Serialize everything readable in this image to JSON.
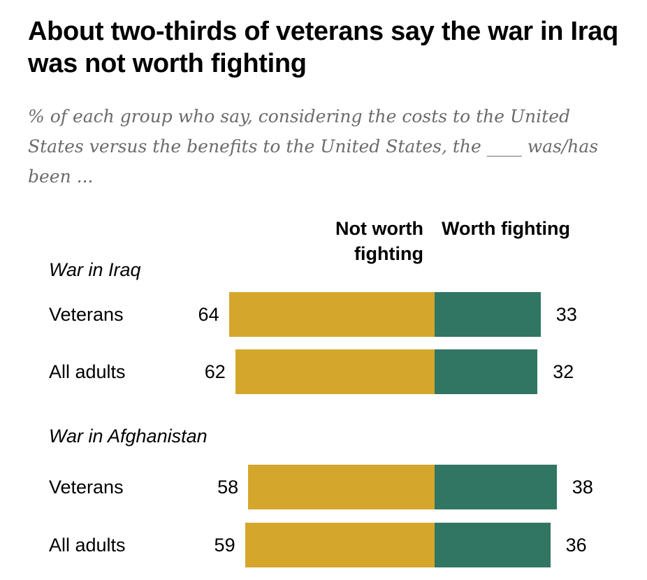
{
  "header": {
    "title": "About two-thirds of veterans say the war in Iraq was not worth fighting",
    "subtitle": "% of each group who say, considering the costs to the United States versus the benefits to the United States, the ____ was/has been ..."
  },
  "legend": {
    "not_worth": "Not worth fighting",
    "worth": "Worth fighting"
  },
  "colors": {
    "not_worth": "#d4a72c",
    "worth": "#317563"
  },
  "chart_data": {
    "type": "bar",
    "orientation": "horizontal-diverging",
    "title": "About two-thirds of veterans say the war in Iraq was not worth fighting",
    "subtitle": "% of each group who say, considering the costs to the United States versus the benefits to the United States, the ____ was/has been ...",
    "series": [
      {
        "name": "Not worth fighting",
        "color": "#d4a72c"
      },
      {
        "name": "Worth fighting",
        "color": "#317563"
      }
    ],
    "groups": [
      {
        "name": "War in Iraq",
        "rows": [
          {
            "label": "Veterans",
            "not_worth": 64,
            "worth": 33
          },
          {
            "label": "All adults",
            "not_worth": 62,
            "worth": 32
          }
        ]
      },
      {
        "name": "War in Afghanistan",
        "rows": [
          {
            "label": "Veterans",
            "not_worth": 58,
            "worth": 38
          },
          {
            "label": "All adults",
            "not_worth": 59,
            "worth": 36
          }
        ]
      }
    ]
  }
}
